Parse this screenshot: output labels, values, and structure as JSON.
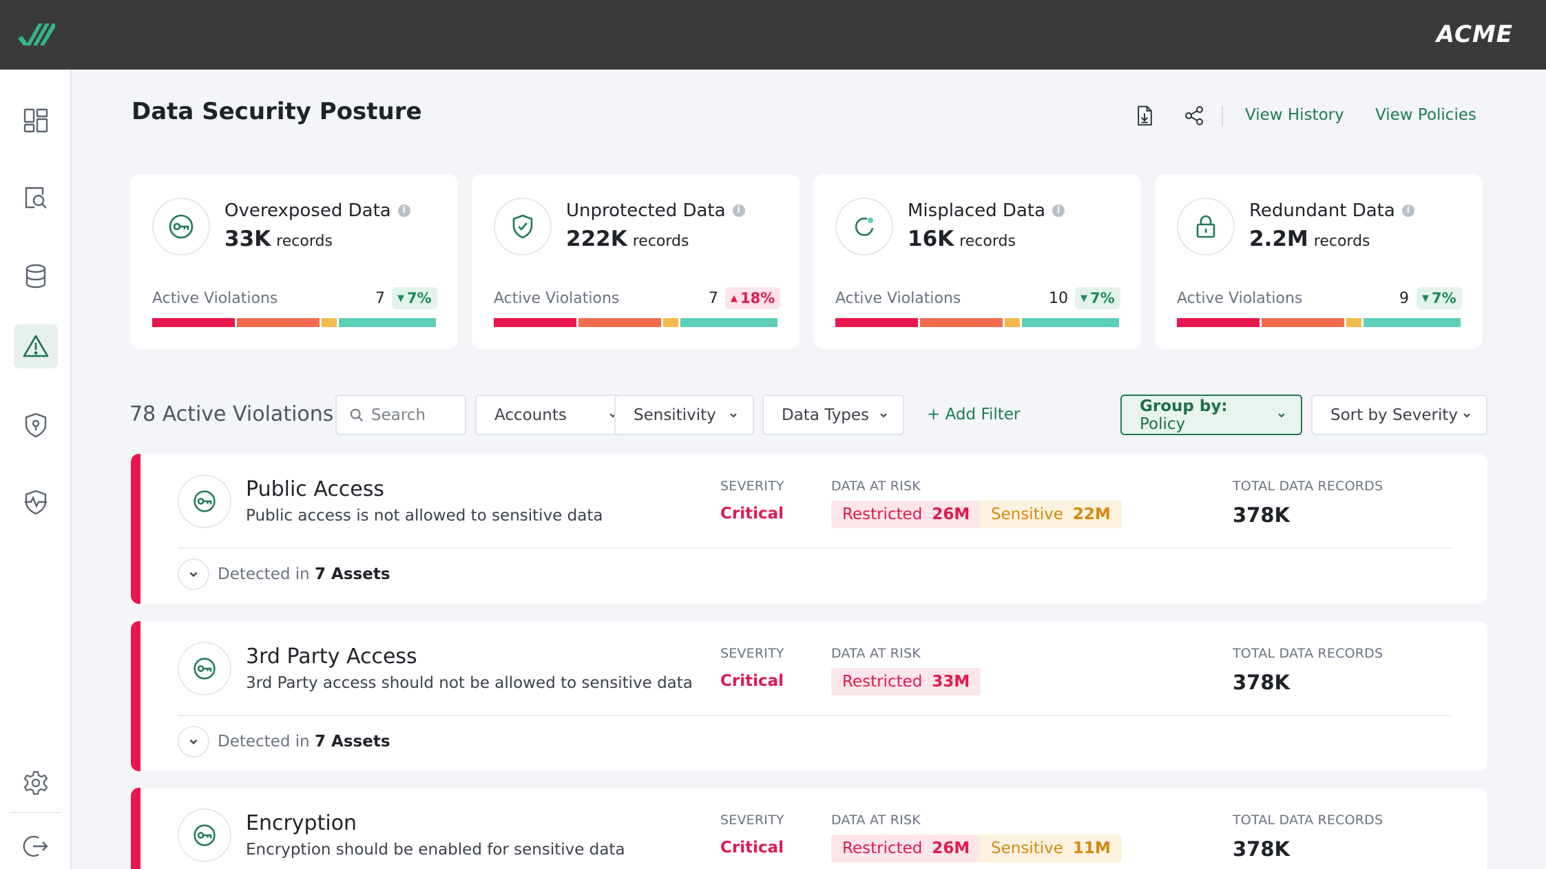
{
  "topbar": {
    "brand": "ACME"
  },
  "sidebar": {
    "items": [
      {
        "icon": "dashboard-icon"
      },
      {
        "icon": "search-document-icon"
      },
      {
        "icon": "database-icon"
      },
      {
        "icon": "warning-icon",
        "active": true
      },
      {
        "icon": "shield-location-icon"
      },
      {
        "icon": "shield-pulse-icon"
      },
      {
        "icon": "gear-icon"
      },
      {
        "icon": "logout-icon"
      }
    ]
  },
  "header": {
    "title": "Data Security Posture",
    "view_history": "View History",
    "view_policies": "View Policies"
  },
  "cards": [
    {
      "title": "Overexposed Data",
      "value": "33K",
      "unit": "records",
      "av_label": "Active Violations",
      "count": "7",
      "delta": "7%",
      "direction": "down",
      "icon": "key-icon"
    },
    {
      "title": "Unprotected Data",
      "value": "222K",
      "unit": "records",
      "av_label": "Active Violations",
      "count": "7",
      "delta": "18%",
      "direction": "up",
      "icon": "shield-check-icon"
    },
    {
      "title": "Misplaced Data",
      "value": "16K",
      "unit": "records",
      "av_label": "Active Violations",
      "count": "10",
      "delta": "7%",
      "direction": "down",
      "icon": "refresh-icon"
    },
    {
      "title": "Redundant Data",
      "value": "2.2M",
      "unit": "records",
      "av_label": "Active Violations",
      "count": "9",
      "delta": "7%",
      "direction": "down",
      "icon": "lock-icon"
    }
  ],
  "colors": {
    "critical": "#e8174e",
    "high": "#f26b4f",
    "medium": "#f2b94b",
    "low": "#5ccfb8",
    "accent": "#1e7a55"
  },
  "filters": {
    "count_label": "78 Active Violations",
    "search_placeholder": "Search",
    "accounts": "Accounts",
    "sensitivity": "Sensitivity",
    "data_types": "Data Types",
    "add_filter": "+ Add Filter",
    "group_prefix": "Group by:",
    "group_value": "Policy",
    "sort": "Sort by Severity"
  },
  "labels": {
    "severity": "SEVERITY",
    "data_at_risk": "DATA AT RISK",
    "total_records": "TOTAL DATA RECORDS",
    "detected_in": "Detected in"
  },
  "policies": [
    {
      "name": "Public Access",
      "desc": "Public access is not allowed to sensitive data",
      "severity": "Critical",
      "restricted_label": "Restricted",
      "restricted": "26M",
      "sensitive_label": "Sensitive",
      "sensitive": "22M",
      "total": "378K",
      "assets": "7 Assets"
    },
    {
      "name": "3rd Party Access",
      "desc": "3rd Party access should not be allowed to sensitive data",
      "severity": "Critical",
      "restricted_label": "Restricted",
      "restricted": "33M",
      "total": "378K",
      "assets": "7 Assets"
    },
    {
      "name": "Encryption",
      "desc": "Encryption should be enabled for sensitive data",
      "severity": "Critical",
      "restricted_label": "Restricted",
      "restricted": "26M",
      "sensitive_label": "Sensitive",
      "sensitive": "11M",
      "total": "378K"
    }
  ]
}
